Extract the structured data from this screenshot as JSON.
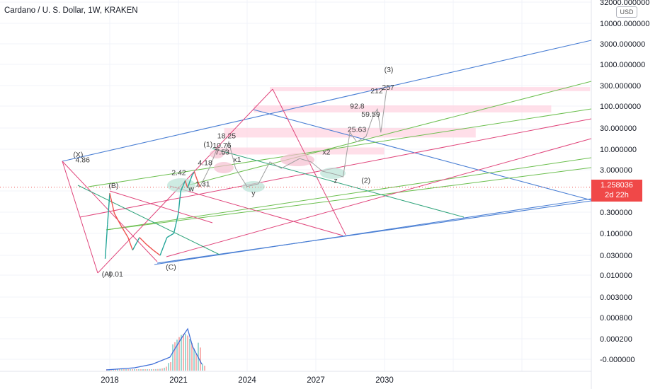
{
  "header": {
    "title": "Cardano / U. S. Dollar, 1W, KRAKEN",
    "currency": "USD"
  },
  "price_tag": {
    "price": "1.258036",
    "countdown": "2d 22h",
    "color": "#f04848"
  },
  "colors": {
    "blue_line": "#4a7fd4",
    "green_line": "#6cbf4f",
    "pink_line": "#e0457b",
    "teal_line": "#2ea37a",
    "gray_path": "#9e9e9e",
    "zone_fill": "#ffd4e1",
    "ellipse_green": "#b9e3d6",
    "ellipse_pink": "#f5bfd0",
    "volume_line": "#3f6fd8"
  },
  "chart_data": {
    "type": "line",
    "symbol": "ADAUSD",
    "interval": "1W",
    "exchange": "KRAKEN",
    "y_scale": "log",
    "y_ticks": [
      "32000.000000",
      "10000.000000",
      "3000.000000",
      "1000.000000",
      "300.000000",
      "100.000000",
      "30.000000",
      "10.000000",
      "3.000000",
      "1.000000",
      "0.300000",
      "0.100000",
      "0.030000",
      "0.010000",
      "0.003000",
      "0.000800",
      "0.000200",
      "-0.000000"
    ],
    "x_ticks": [
      "2018",
      "2021",
      "2024",
      "2027",
      "2030"
    ],
    "last_price": 1.258036,
    "price_path": [
      {
        "x": 2017.8,
        "y": 0.025
      },
      {
        "x": 2017.9,
        "y": 0.16
      },
      {
        "x": 2018.0,
        "y": 0.9
      },
      {
        "x": 2018.2,
        "y": 0.3
      },
      {
        "x": 2018.5,
        "y": 0.15
      },
      {
        "x": 2018.8,
        "y": 0.08
      },
      {
        "x": 2019.0,
        "y": 0.04
      },
      {
        "x": 2019.3,
        "y": 0.08
      },
      {
        "x": 2019.6,
        "y": 0.055
      },
      {
        "x": 2019.9,
        "y": 0.04
      },
      {
        "x": 2020.2,
        "y": 0.03
      },
      {
        "x": 2020.5,
        "y": 0.08
      },
      {
        "x": 2020.8,
        "y": 0.1
      },
      {
        "x": 2021.0,
        "y": 0.3
      },
      {
        "x": 2021.1,
        "y": 1.0
      },
      {
        "x": 2021.3,
        "y": 1.8
      },
      {
        "x": 2021.4,
        "y": 1.2
      },
      {
        "x": 2021.6,
        "y": 2.4
      },
      {
        "x": 2021.7,
        "y": 2.9
      },
      {
        "x": 2021.8,
        "y": 2.0
      },
      {
        "x": 2021.95,
        "y": 1.26
      }
    ],
    "annotations": [
      {
        "text": "(X)",
        "x": 2016.4,
        "y": 6.5
      },
      {
        "text": "4.86",
        "x": 2016.5,
        "y": 4.86
      },
      {
        "text": "(B)",
        "x": 2017.95,
        "y": 1.2
      },
      {
        "text": "(A)",
        "x": 2017.65,
        "y": 0.0095
      },
      {
        "text": "0.01",
        "x": 2017.95,
        "y": 0.0095
      },
      {
        "text": "(C)",
        "x": 2020.45,
        "y": 0.014
      },
      {
        "text": "2.42",
        "x": 2020.7,
        "y": 2.42
      },
      {
        "text": "w",
        "x": 2021.45,
        "y": 1.0
      },
      {
        "text": "1.31",
        "x": 2021.75,
        "y": 1.31
      },
      {
        "text": "4.18",
        "x": 2021.85,
        "y": 4.18
      },
      {
        "text": "(1)",
        "x": 2022.1,
        "y": 11.5
      },
      {
        "text": "10.76",
        "x": 2022.5,
        "y": 10.76
      },
      {
        "text": "7.53",
        "x": 2022.6,
        "y": 7.53
      },
      {
        "text": "18.25",
        "x": 2022.7,
        "y": 18.25
      },
      {
        "text": "x1",
        "x": 2023.4,
        "y": 5.0
      },
      {
        "text": "y",
        "x": 2024.2,
        "y": 0.8
      },
      {
        "text": "x2",
        "x": 2027.3,
        "y": 7.5
      },
      {
        "text": "z",
        "x": 2027.8,
        "y": 1.6
      },
      {
        "text": "(2)",
        "x": 2029.0,
        "y": 1.6
      },
      {
        "text": "25.63",
        "x": 2028.4,
        "y": 25.63
      },
      {
        "text": "92.8",
        "x": 2028.5,
        "y": 92.8
      },
      {
        "text": "59.59",
        "x": 2029.0,
        "y": 59.59
      },
      {
        "text": "212",
        "x": 2029.4,
        "y": 212
      },
      {
        "text": "257",
        "x": 2029.9,
        "y": 257
      },
      {
        "text": "(3)",
        "x": 2030.0,
        "y": 680
      }
    ],
    "projected_path": [
      {
        "x": 2021.95,
        "y": 1.3
      },
      {
        "x": 2022.4,
        "y": 4.0
      },
      {
        "x": 2022.7,
        "y": 10.76
      },
      {
        "x": 2023.0,
        "y": 7.53
      },
      {
        "x": 2023.2,
        "y": 15.0
      },
      {
        "x": 2023.5,
        "y": 3.5
      },
      {
        "x": 2024.0,
        "y": 1.3
      },
      {
        "x": 2024.5,
        "y": 1.5
      },
      {
        "x": 2025.0,
        "y": 5.0
      },
      {
        "x": 2025.5,
        "y": 3.5
      },
      {
        "x": 2026.3,
        "y": 6.0
      },
      {
        "x": 2026.8,
        "y": 5.0
      },
      {
        "x": 2027.3,
        "y": 3.0
      },
      {
        "x": 2027.9,
        "y": 2.5
      },
      {
        "x": 2028.2,
        "y": 2.2
      },
      {
        "x": 2028.5,
        "y": 25.0
      },
      {
        "x": 2028.8,
        "y": 15.0
      },
      {
        "x": 2029.2,
        "y": 20.0
      },
      {
        "x": 2029.5,
        "y": 60.0
      },
      {
        "x": 2029.7,
        "y": 90.0
      },
      {
        "x": 2029.85,
        "y": 25.0
      },
      {
        "x": 2030.1,
        "y": 257.0
      }
    ],
    "resistance_zones": [
      {
        "x_start": 2025.0,
        "x_end": 2039.0,
        "y_low": 240,
        "y_high": 300
      },
      {
        "x_start": 2024.3,
        "x_end": 2037.3,
        "y_low": 75,
        "y_high": 110
      },
      {
        "x_start": 2023.0,
        "x_end": 2034.0,
        "y_low": 19,
        "y_high": 32
      },
      {
        "x_start": 2022.6,
        "x_end": 2030.0,
        "y_low": 7.5,
        "y_high": 11
      }
    ]
  }
}
